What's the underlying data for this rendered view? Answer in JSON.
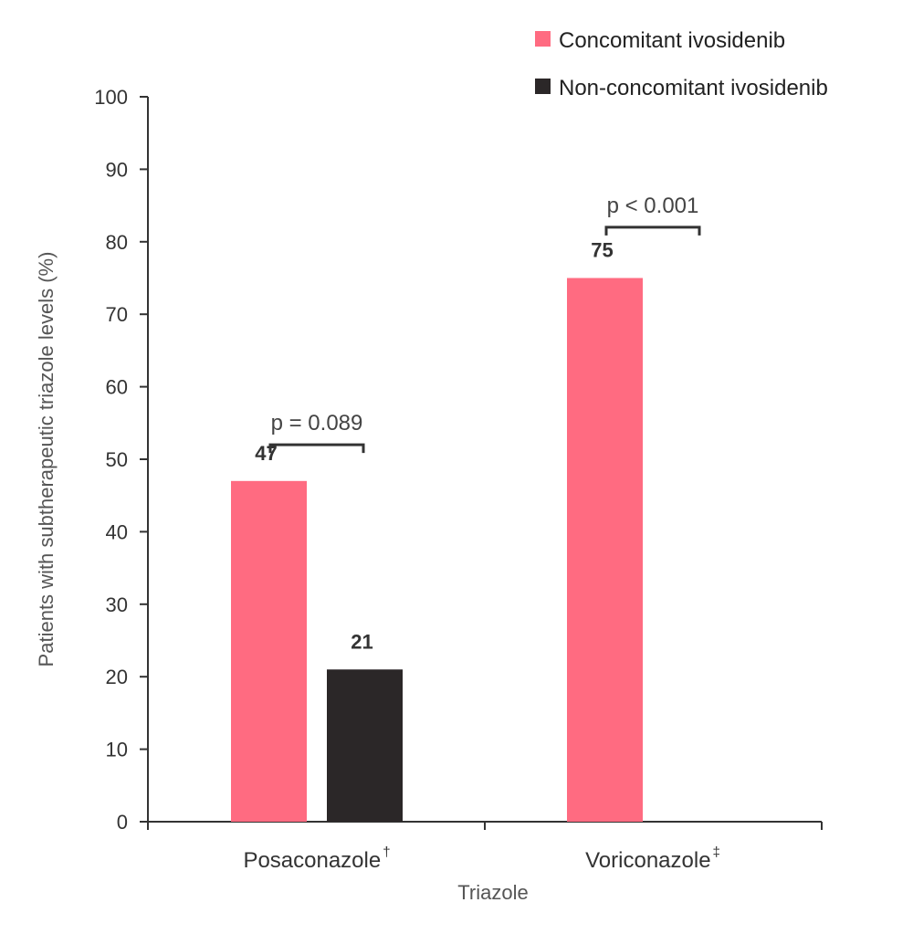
{
  "chart_data": {
    "type": "bar",
    "title": "",
    "xlabel": "Triazole",
    "ylabel": "Patients with subtherapeutic triazole levels (%)",
    "ylim": [
      0,
      100
    ],
    "yticks": [
      0,
      10,
      20,
      30,
      40,
      50,
      60,
      70,
      80,
      90,
      100
    ],
    "ytick_labels": [
      "0",
      "10",
      "20",
      "30",
      "40",
      "50",
      "60",
      "70",
      "80",
      "90",
      "100"
    ],
    "categories": [
      {
        "name": "Posaconazole",
        "footnote_mark": "†"
      },
      {
        "name": "Voriconazole",
        "footnote_mark": "‡"
      }
    ],
    "series": [
      {
        "name": "Concomitant ivosidenib",
        "color": "#FF6B81",
        "values": [
          47,
          75
        ],
        "labels": [
          "47",
          "75"
        ]
      },
      {
        "name": "Non-concomitant ivosidenib",
        "color": "#2B2728",
        "values": [
          21,
          null
        ],
        "labels": [
          "21",
          ""
        ]
      }
    ],
    "annotations": [
      {
        "category_index": 0,
        "text": "p = 0.089",
        "bracket_level": 52
      },
      {
        "category_index": 1,
        "text": "p < 0.001",
        "bracket_level": 82
      }
    ],
    "legend_position": "top-right",
    "grid": false
  }
}
